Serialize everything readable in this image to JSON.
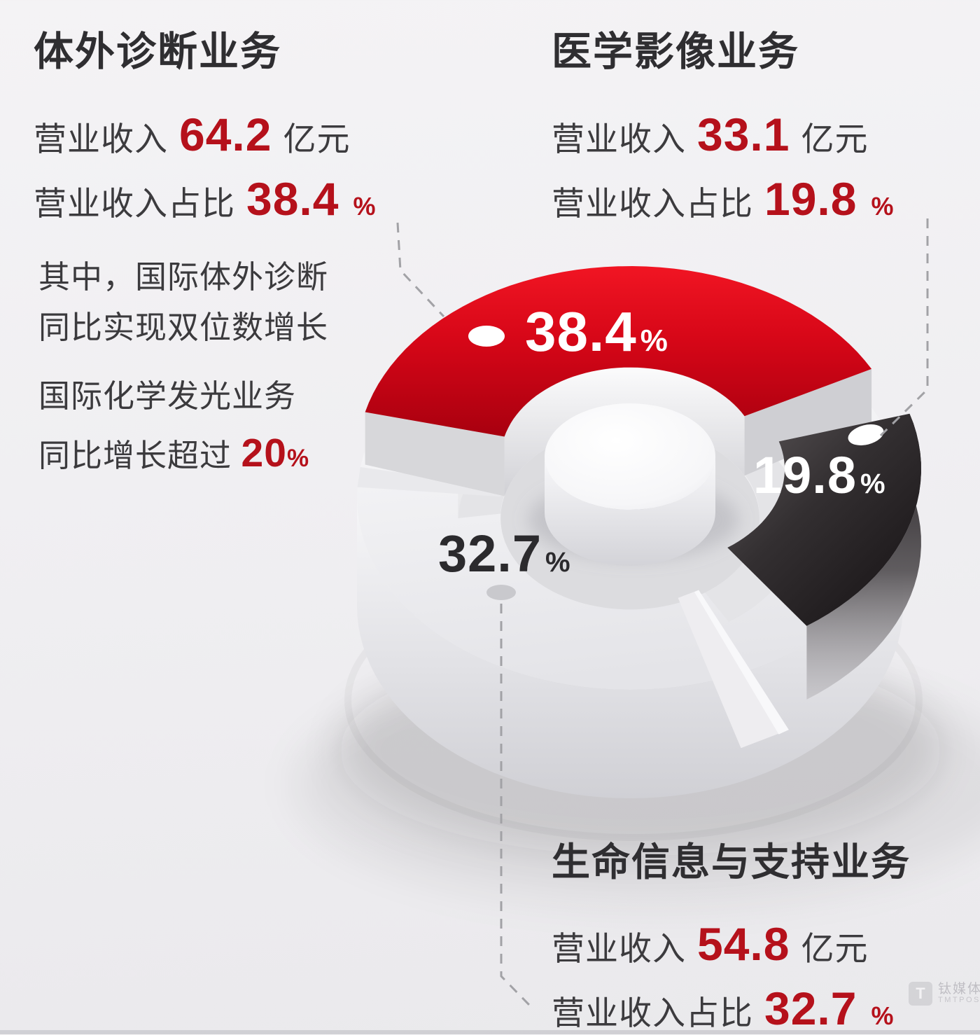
{
  "colors": {
    "accent_red": "#b5111b",
    "segment_red": "#d80b1a",
    "segment_dark": "#2e2a2c",
    "segment_light": "#f0f0f2",
    "text_dark": "#2f2e31",
    "text_body": "#3c3b3e",
    "dash_line": "#a2a2a6"
  },
  "ivd": {
    "title": "体外诊断业务",
    "revenue_label": "营业收入",
    "revenue_value": "64.2",
    "revenue_unit": "亿元",
    "share_label": "营业收入占比",
    "share_value": "38.4",
    "share_unit": "%"
  },
  "imaging": {
    "title": "医学影像业务",
    "revenue_label": "营业收入",
    "revenue_value": "33.1",
    "revenue_unit": "亿元",
    "share_label": "营业收入占比",
    "share_value": "19.8",
    "share_unit": "%"
  },
  "pmls": {
    "title": "生命信息与支持业务",
    "revenue_label": "营业收入",
    "revenue_value": "54.8",
    "revenue_unit": "亿元",
    "share_label": "营业收入占比",
    "share_value": "32.7",
    "share_unit": "%"
  },
  "note": {
    "line1": "其中，国际体外诊断",
    "line2": "同比实现双位数增长",
    "line3": "国际化学发光业务",
    "line4_prefix": "同比增长超过",
    "line4_value": "20",
    "line4_unit": "%"
  },
  "watermark": {
    "logo_letter": "T",
    "brand": "钛媒体",
    "sub": "TMTPOST"
  },
  "chart_data": {
    "type": "pie",
    "variant": "3d-exploded-donut",
    "title": "",
    "unit": "%",
    "start_angle_deg": 166,
    "gap_deg": 11,
    "legend_position": "none",
    "segments": [
      {
        "label": "体外诊断业务",
        "value": 38.4,
        "display": "38.4",
        "color_key": "red",
        "color": "#d80b1a",
        "label_color": "#ffffff"
      },
      {
        "label": "医学影像业务",
        "value": 19.8,
        "display": "19.8",
        "color_key": "dark",
        "color": "#2e2a2c",
        "label_color": "#ffffff"
      },
      {
        "label": "生命信息与支持业务",
        "value": 32.7,
        "display": "32.7",
        "color_key": "light",
        "color": "#f0f0f2",
        "label_color": "#2b2a2d"
      }
    ]
  }
}
